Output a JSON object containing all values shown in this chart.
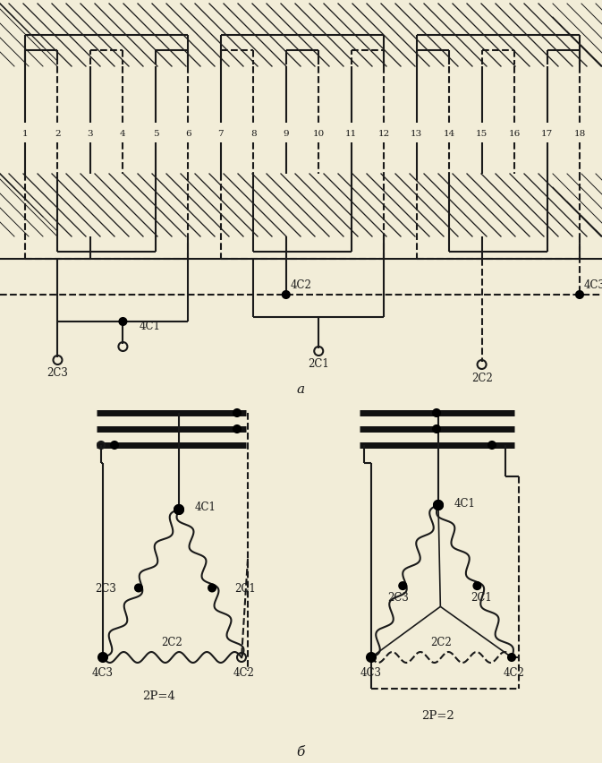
{
  "bg_color": "#f2edd8",
  "line_color": "#1a1a1a",
  "fig_width": 6.73,
  "fig_height": 8.53,
  "dpi": 100,
  "label_a": "a",
  "label_b": "б",
  "label_2p4": "2P=4",
  "label_2p2": "2P=2"
}
